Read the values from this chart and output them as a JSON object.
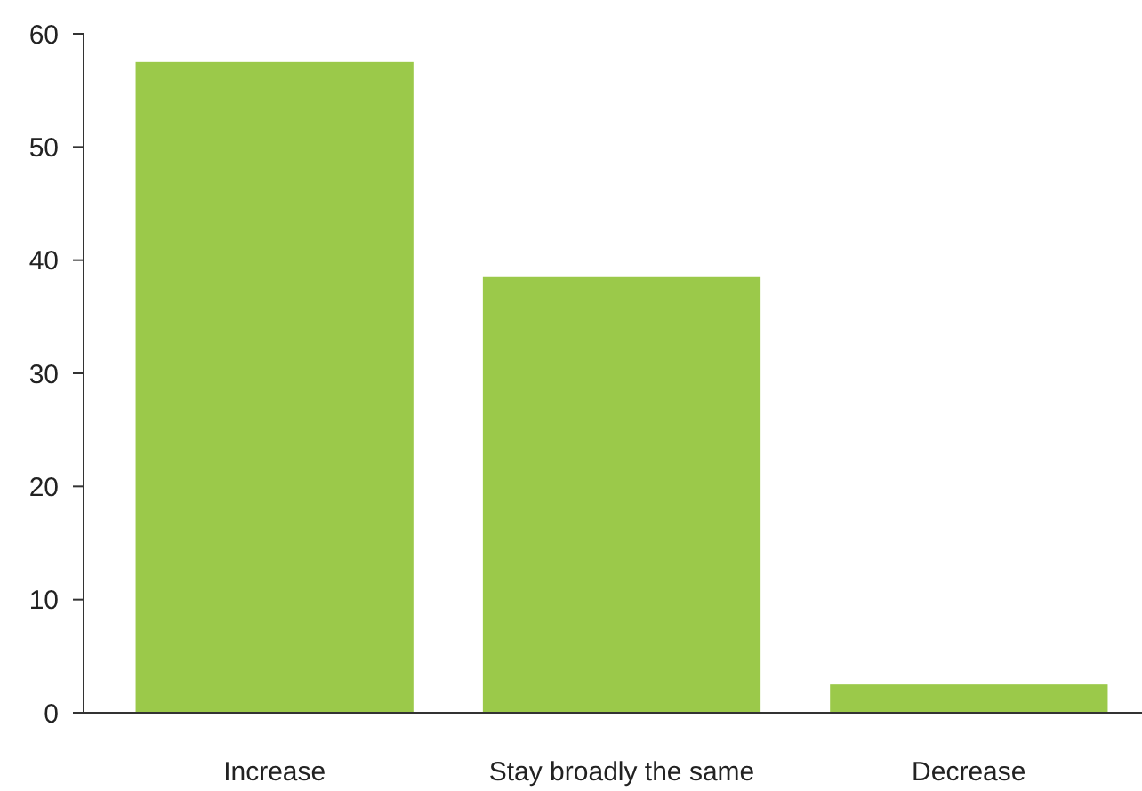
{
  "chart_data": {
    "type": "bar",
    "categories": [
      "Increase",
      "Stay broadly the same",
      "Decrease"
    ],
    "values": [
      57.5,
      38.5,
      2.5
    ],
    "color": "#9bc94a",
    "ylim": [
      0,
      60
    ],
    "yticks": [
      0,
      10,
      20,
      30,
      40,
      50,
      60
    ]
  }
}
